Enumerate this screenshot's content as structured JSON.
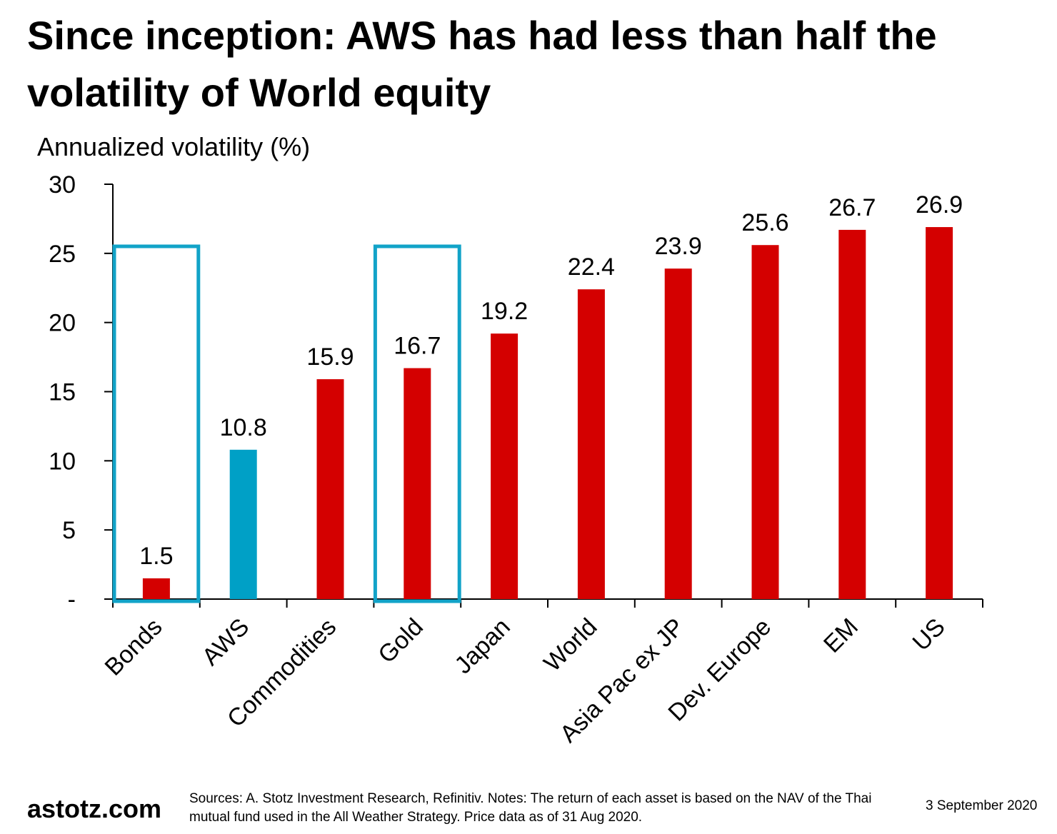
{
  "title": "Since inception: AWS has had less than half the volatility of World equity",
  "footer": {
    "logo": "astotz.com",
    "notes": "Sources: A. Stotz Investment Research, Refinitiv. Notes: The return of each asset is based on the NAV of the Thai mutual fund used in the All Weather Strategy. Price data as of 31 Aug 2020.",
    "date": "3 September 2020"
  },
  "colors": {
    "bar_default": "#d40000",
    "bar_highlight": "#00a0c6",
    "box": "#12a3c8",
    "axis": "#000000"
  },
  "chart_data": {
    "type": "bar",
    "title": "Since inception: AWS has had less than half the volatility of World equity",
    "ylabel": "Annualized volatility (%)",
    "xlabel": "",
    "ylim": [
      0,
      30
    ],
    "yticks": [
      0,
      5,
      10,
      15,
      20,
      25,
      30
    ],
    "ytick_labels": [
      "-",
      "5",
      "10",
      "15",
      "20",
      "25",
      "30"
    ],
    "categories": [
      "Bonds",
      "AWS",
      "Commodities",
      "Gold",
      "Japan",
      "World",
      "Asia Pac ex JP",
      "Dev. Europe",
      "EM",
      "US"
    ],
    "values": [
      1.5,
      10.8,
      15.9,
      16.7,
      19.2,
      22.4,
      23.9,
      25.6,
      26.7,
      26.9
    ],
    "value_labels": [
      "1.5",
      "10.8",
      "15.9",
      "16.7",
      "19.2",
      "22.4",
      "23.9",
      "25.6",
      "26.7",
      "26.9"
    ],
    "highlighted_category": "AWS",
    "boxed_categories": [
      "Bonds",
      "Gold"
    ],
    "grid": false,
    "legend": "none"
  }
}
